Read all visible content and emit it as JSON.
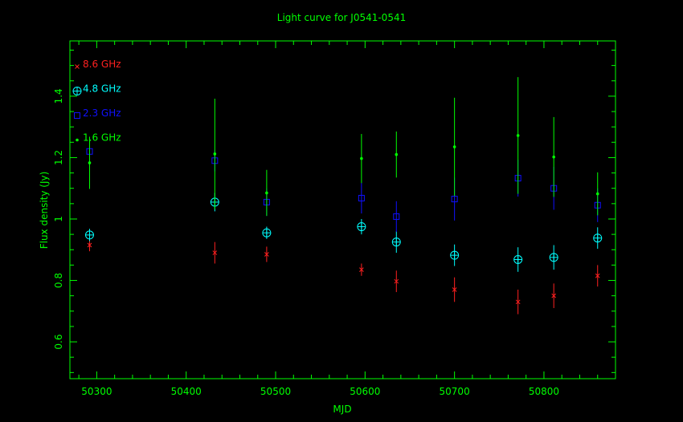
{
  "chart_data": {
    "type": "scatter",
    "title": "Light curve for J0541-0541",
    "xlabel": "MJD",
    "ylabel": "Flux density (Jy)",
    "xlim": [
      50270,
      50880
    ],
    "ylim": [
      0.48,
      1.58
    ],
    "xticks": [
      50300,
      50400,
      50500,
      50600,
      50700,
      50800
    ],
    "yticks": [
      0.6,
      0.8,
      1,
      1.2,
      1.4
    ],
    "xtick_labels": [
      "50300",
      "50400",
      "50500",
      "50600",
      "50700",
      "50800"
    ],
    "ytick_labels": [
      "0.6",
      "0.8",
      "1",
      "1.2",
      "1.4"
    ],
    "grid": false,
    "legend_position": "top-left",
    "colors": {
      "frame": "#00ff00",
      "text": "#00ff00",
      "background": "#000000"
    },
    "series": [
      {
        "name": "8.6 GHz",
        "marker": "x",
        "color": "#ff2020",
        "points": [
          {
            "x": 50292,
            "y": 0.915,
            "err": 0.02
          },
          {
            "x": 50432,
            "y": 0.89,
            "err": 0.035
          },
          {
            "x": 50490,
            "y": 0.885,
            "err": 0.025
          },
          {
            "x": 50596,
            "y": 0.835,
            "err": 0.02
          },
          {
            "x": 50635,
            "y": 0.797,
            "err": 0.035
          },
          {
            "x": 50700,
            "y": 0.77,
            "err": 0.04
          },
          {
            "x": 50771,
            "y": 0.73,
            "err": 0.04
          },
          {
            "x": 50811,
            "y": 0.75,
            "err": 0.04
          },
          {
            "x": 50860,
            "y": 0.815,
            "err": 0.035
          }
        ]
      },
      {
        "name": "4.8 GHz",
        "marker": "circle-plus",
        "color": "#00ffff",
        "points": [
          {
            "x": 50292,
            "y": 0.948,
            "err": 0.02
          },
          {
            "x": 50432,
            "y": 1.055,
            "err": 0.03
          },
          {
            "x": 50490,
            "y": 0.955,
            "err": 0.02
          },
          {
            "x": 50596,
            "y": 0.975,
            "err": 0.025
          },
          {
            "x": 50635,
            "y": 0.925,
            "err": 0.035
          },
          {
            "x": 50700,
            "y": 0.882,
            "err": 0.035
          },
          {
            "x": 50771,
            "y": 0.868,
            "err": 0.04
          },
          {
            "x": 50811,
            "y": 0.875,
            "err": 0.04
          },
          {
            "x": 50860,
            "y": 0.938,
            "err": 0.035
          }
        ]
      },
      {
        "name": "2.3 GHz",
        "marker": "square",
        "color": "#1010ff",
        "points": [
          {
            "x": 50292,
            "y": 1.22,
            "err": 0.035
          },
          {
            "x": 50432,
            "y": 1.19,
            "err": 0.035
          },
          {
            "x": 50490,
            "y": 1.055,
            "err": 0.045
          },
          {
            "x": 50596,
            "y": 1.068,
            "err": 0.05
          },
          {
            "x": 50635,
            "y": 1.008,
            "err": 0.05
          },
          {
            "x": 50700,
            "y": 1.065,
            "err": 0.07
          },
          {
            "x": 50771,
            "y": 1.133,
            "err": 0.06
          },
          {
            "x": 50811,
            "y": 1.1,
            "err": 0.07
          },
          {
            "x": 50860,
            "y": 1.045,
            "err": 0.055
          }
        ]
      },
      {
        "name": "1.6 GHz",
        "marker": "dot",
        "color": "#00ff00",
        "points": [
          {
            "x": 50292,
            "y": 1.183,
            "err": 0.085
          },
          {
            "x": 50432,
            "y": 1.212,
            "err": 0.18
          },
          {
            "x": 50490,
            "y": 1.085,
            "err": 0.075
          },
          {
            "x": 50596,
            "y": 1.197,
            "err": 0.08
          },
          {
            "x": 50635,
            "y": 1.21,
            "err": 0.075
          },
          {
            "x": 50700,
            "y": 1.235,
            "err": 0.16
          },
          {
            "x": 50771,
            "y": 1.272,
            "err": 0.19
          },
          {
            "x": 50811,
            "y": 1.202,
            "err": 0.13
          },
          {
            "x": 50860,
            "y": 1.082,
            "err": 0.07
          }
        ]
      }
    ]
  }
}
